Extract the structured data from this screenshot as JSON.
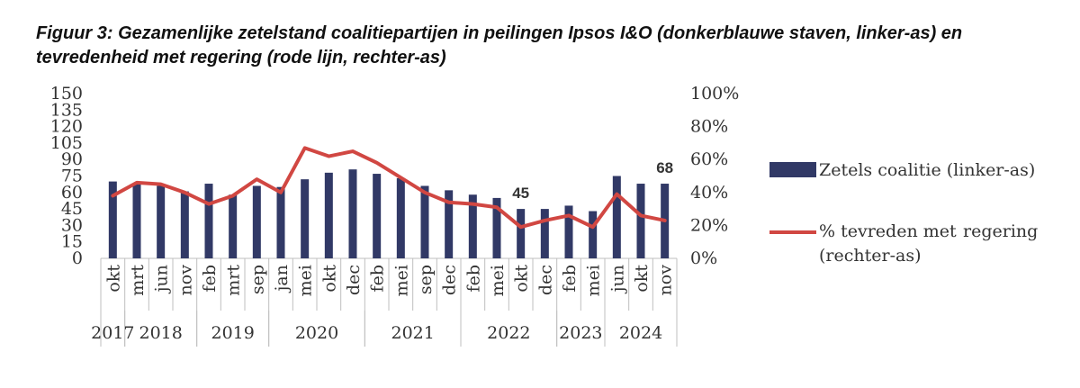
{
  "chart_data": {
    "type": "bar+line",
    "title": "Figuur 3: Gezamenlijke zetelstand coalitiepartijen in peilingen Ipsos I&O (donkerblauwe staven, linker-as) en tevredenheid met regering (rode lijn, rechter-as)",
    "categories": [
      "okt",
      "mrt",
      "jun",
      "nov",
      "feb",
      "mrt",
      "sep",
      "jan",
      "mei",
      "okt",
      "dec",
      "feb",
      "mei",
      "sep",
      "dec",
      "feb",
      "mei",
      "okt",
      "dec",
      "feb",
      "mei",
      "jun",
      "okt",
      "nov"
    ],
    "years": [
      {
        "label": "2017",
        "start": 0,
        "end": 0
      },
      {
        "label": "2018",
        "start": 1,
        "end": 3
      },
      {
        "label": "2019",
        "start": 4,
        "end": 6
      },
      {
        "label": "2020",
        "start": 7,
        "end": 10
      },
      {
        "label": "2021",
        "start": 11,
        "end": 14
      },
      {
        "label": "2022",
        "start": 15,
        "end": 18
      },
      {
        "label": "2023",
        "start": 19,
        "end": 20
      },
      {
        "label": "2024",
        "start": 21,
        "end": 23
      }
    ],
    "series": [
      {
        "name": "Zetels coalitie (linker-as)",
        "kind": "bar",
        "axis": "left",
        "color": "#313966",
        "values": [
          70,
          68,
          66,
          61,
          68,
          58,
          66,
          65,
          72,
          78,
          81,
          77,
          73,
          66,
          62,
          58,
          55,
          45,
          45,
          48,
          43,
          75,
          68,
          68
        ]
      },
      {
        "name": "% tevreden met regering (rechter-as)",
        "kind": "line",
        "axis": "right",
        "color": "#d14742",
        "values": [
          38,
          46,
          45,
          40,
          33,
          38,
          48,
          40,
          67,
          62,
          65,
          58,
          49,
          40,
          34,
          33,
          31,
          19,
          23,
          26,
          19,
          39,
          26,
          23
        ]
      }
    ],
    "left_axis": {
      "ticks": [
        0,
        15,
        30,
        45,
        60,
        75,
        90,
        105,
        120,
        135,
        150
      ],
      "range": [
        0,
        150
      ]
    },
    "right_axis": {
      "ticks": [
        "0%",
        "20%",
        "40%",
        "60%",
        "80%",
        "100%"
      ],
      "range": [
        0,
        100
      ]
    },
    "annotations": [
      {
        "index": 17,
        "text": "45"
      },
      {
        "index": 23,
        "text": "68"
      }
    ],
    "legend": [
      "Zetels coalitie (linker-as)",
      "% tevreden met",
      "regering",
      "(rechter-as)"
    ],
    "legend_position": "right"
  }
}
